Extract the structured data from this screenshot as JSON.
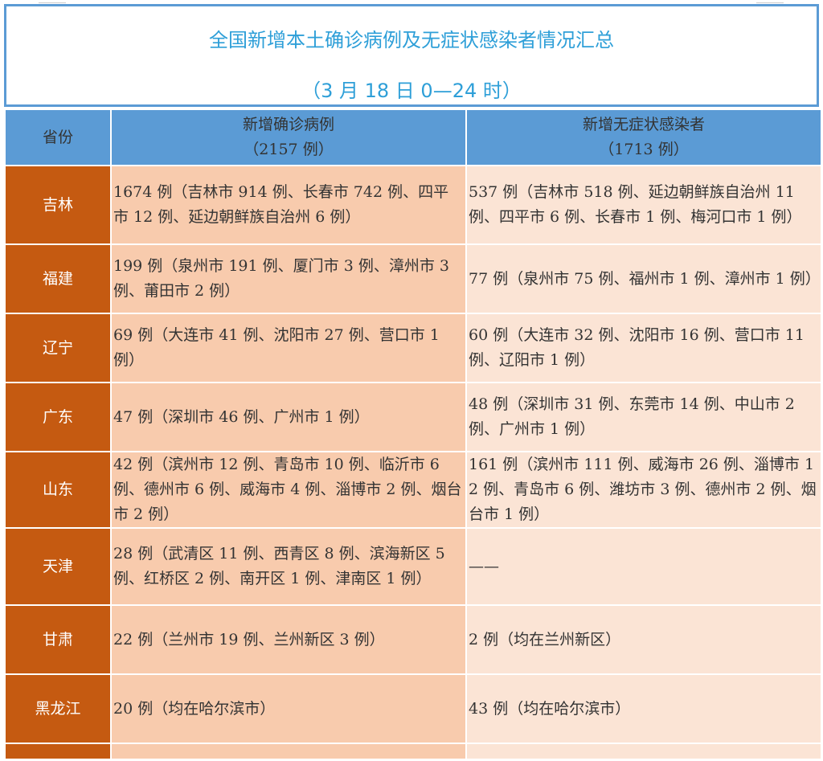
{
  "title": "全国新增本土确诊病例及无症状感染者情况汇总",
  "subtitle": "（3 月 18 日 0—24 时）",
  "header": {
    "province": "省份",
    "confirmed": "新增确诊病例",
    "confirmed_total": "（2157 例）",
    "asymptomatic": "新增无症状感染者",
    "asymptomatic_total": "（1713 例）"
  },
  "rows": [
    {
      "province": "吉林",
      "confirmed": "1674 例（吉林市 914 例、长春市 742 例、四平市 12 例、延边朝鲜族自治州 6 例）",
      "asymptomatic": "537 例（吉林市 518 例、延边朝鲜族自治州 11 例、四平市 6 例、长春市 1 例、梅河口市 1 例）"
    },
    {
      "province": "福建",
      "confirmed": "199 例（泉州市 191 例、厦门市 3 例、漳州市 3 例、莆田市 2 例）",
      "asymptomatic": "77 例（泉州市 75 例、福州市 1 例、漳州市 1 例）"
    },
    {
      "province": "辽宁",
      "confirmed": "69 例（大连市 41 例、沈阳市 27 例、营口市 1 例）",
      "asymptomatic": "60 例（大连市 32 例、沈阳市 16 例、营口市 11 例、辽阳市 1 例）"
    },
    {
      "province": "广东",
      "confirmed": "47 例（深圳市 46 例、广州市 1 例）",
      "asymptomatic": "48 例（深圳市 31 例、东莞市 14 例、中山市 2 例、广州市 1 例）"
    },
    {
      "province": "山东",
      "confirmed": "42 例（滨州市 12 例、青岛市 10 例、临沂市 6 例、德州市 6 例、威海市 4 例、淄博市 2 例、烟台市 2 例）",
      "asymptomatic": "161 例（滨州市 111 例、威海市 26 例、淄博市 12 例、青岛市 6 例、潍坊市 3 例、德州市 2 例、烟台市 1 例）"
    },
    {
      "province": "天津",
      "confirmed": "28 例（武清区 11 例、西青区 8 例、滨海新区 5 例、红桥区 2 例、南开区 1 例、津南区 1 例）",
      "asymptomatic": "——"
    },
    {
      "province": "甘肃",
      "confirmed": "22 例（兰州市 19 例、兰州新区 3 例）",
      "asymptomatic": "2 例（均在兰州新区）"
    },
    {
      "province": "黑龙江",
      "confirmed": "20 例（均在哈尔滨市）",
      "asymptomatic": "43 例（均在哈尔滨市）"
    },
    {
      "province": "",
      "confirmed": "",
      "asymptomatic": ""
    }
  ],
  "colors": {
    "header": "#5b9bd5",
    "province": "#c55a11",
    "confirmed_cell": "#f8cbad",
    "asymptomatic_cell": "#fbe4d5",
    "title": "#2e9fd8"
  }
}
